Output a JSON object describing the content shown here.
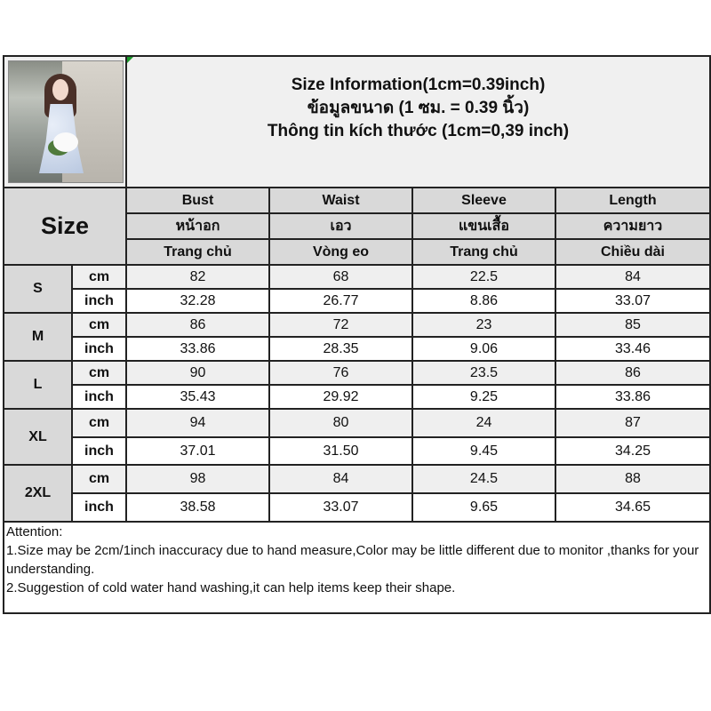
{
  "title_lines": [
    "Size Information(1cm=0.39inch)",
    "ข้อมูลขนาด (1 ซม. = 0.39 นิ้ว)",
    "Thông tin kích thước (1cm=0,39 inch)"
  ],
  "size_header": "Size",
  "columns": [
    {
      "en": "Bust",
      "th": "หน้าอก",
      "vi": "Trang chủ"
    },
    {
      "en": "Waist",
      "th": "เอว",
      "vi": "Vòng eo"
    },
    {
      "en": "Sleeve",
      "th": "แขนเสื้อ",
      "vi": "Trang chủ"
    },
    {
      "en": "Length",
      "th": "ความยาว",
      "vi": "Chiều dài"
    }
  ],
  "units": {
    "cm": "cm",
    "inch": "inch"
  },
  "sizes": [
    {
      "name": "S",
      "cm": [
        "82",
        "68",
        "22.5",
        "84"
      ],
      "inch": [
        "32.28",
        "26.77",
        "8.86",
        "33.07"
      ]
    },
    {
      "name": "M",
      "cm": [
        "86",
        "72",
        "23",
        "85"
      ],
      "inch": [
        "33.86",
        "28.35",
        "9.06",
        "33.46"
      ]
    },
    {
      "name": "L",
      "cm": [
        "90",
        "76",
        "23.5",
        "86"
      ],
      "inch": [
        "35.43",
        "29.92",
        "9.25",
        "33.86"
      ]
    },
    {
      "name": "XL",
      "cm": [
        "94",
        "80",
        "24",
        "87"
      ],
      "inch": [
        "37.01",
        "31.50",
        "9.45",
        "34.25"
      ]
    },
    {
      "name": "2XL",
      "cm": [
        "98",
        "84",
        "24.5",
        "88"
      ],
      "inch": [
        "38.58",
        "33.07",
        "9.65",
        "34.65"
      ]
    }
  ],
  "attention": {
    "heading": "Attention:",
    "notes": [
      "1.Size may be 2cm/1inch inaccuracy due to hand measure,Color may be little different due to monitor ,thanks for your understanding.",
      "2.Suggestion of cold water hand washing,it can help items keep their shape."
    ]
  },
  "colors": {
    "header_gray": "#d9d9d9",
    "cm_row": "#efefef",
    "title_bg": "#f0f0f0"
  }
}
